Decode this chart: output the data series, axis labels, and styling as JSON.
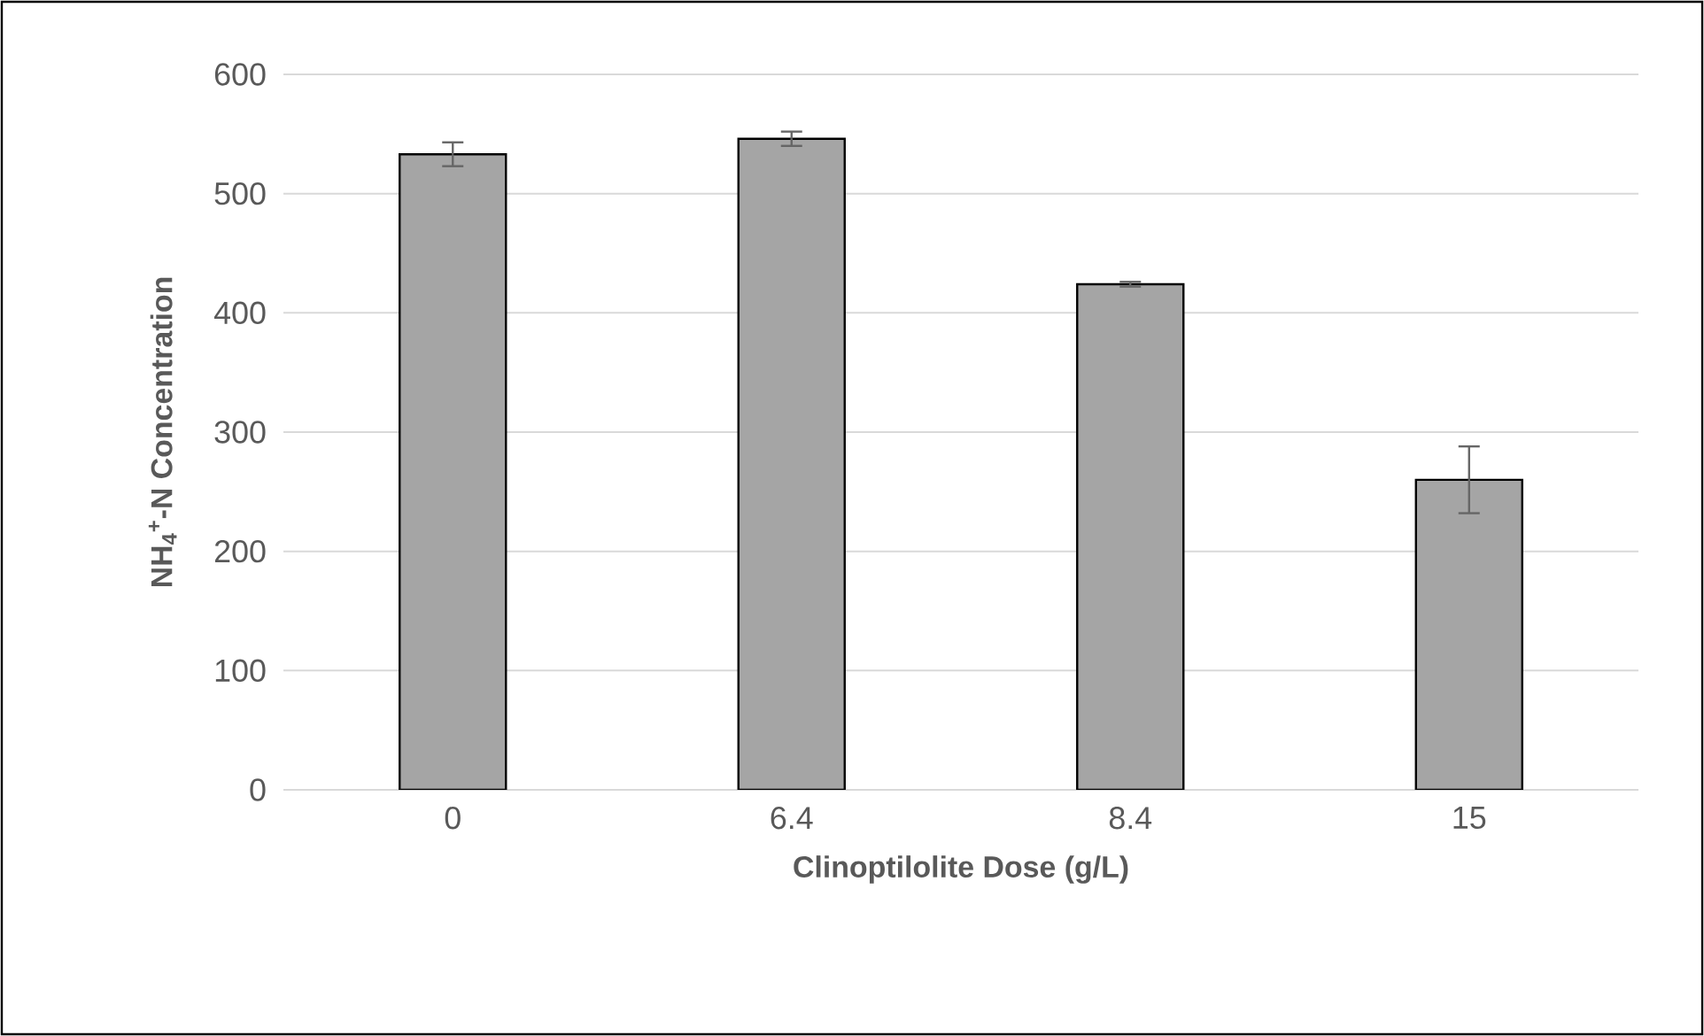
{
  "chart_data": {
    "type": "bar",
    "xlabel": "Clinoptilolite Dose (g/L)",
    "ylabel": "NH$_{4}$$^{+}$-N Concentration",
    "categories": [
      "0",
      "6.4",
      "8.4",
      "15"
    ],
    "values": [
      533,
      546,
      424,
      260
    ],
    "errors": [
      10,
      6,
      2,
      28
    ],
    "color": "#a5a5a5",
    "ylim": [
      0,
      600
    ],
    "yticks": [
      0,
      100,
      200,
      300,
      400,
      500,
      600
    ],
    "grid": "y"
  }
}
